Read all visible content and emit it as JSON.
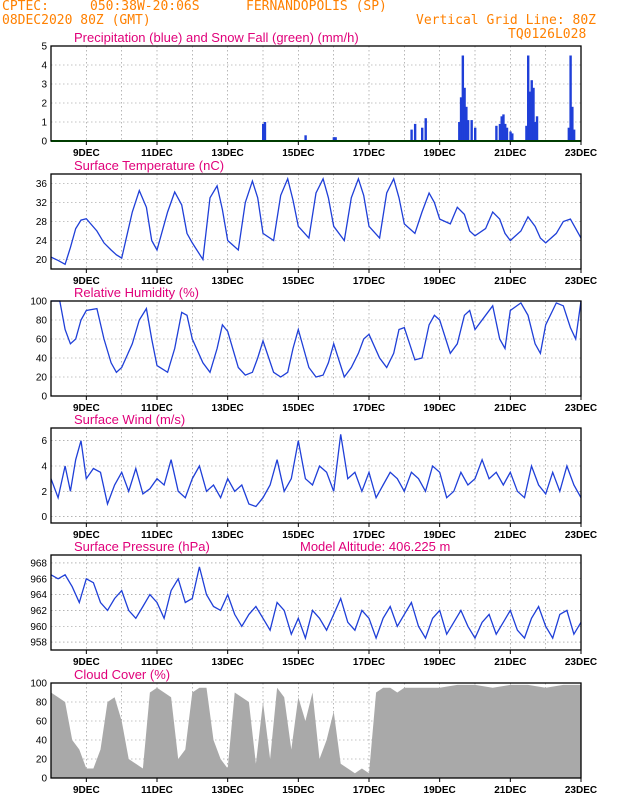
{
  "header": {
    "source": "CPTEC:",
    "coords": "050:38W-20:06S",
    "location": "FERNANDOPOLIS (SP)",
    "run": "08DEC2020 80Z (GMT)",
    "grid_info": "Vertical Grid Line: 80Z",
    "model": "TQ0126L028"
  },
  "colors": {
    "header": "#ff8000",
    "title": "#e0007a",
    "line": "#1f3fd8",
    "snow": "#00aa00",
    "cloud": "#a9a9a9"
  },
  "chart_data": [
    {
      "type": "bar",
      "title": "Precipitation (blue) and Snow Fall (green) (mm/h)",
      "ylim": [
        0,
        5
      ],
      "yticks": [
        0,
        1,
        2,
        3,
        4,
        5
      ],
      "xticks": [
        "9DEC",
        "11DEC",
        "13DEC",
        "15DEC",
        "17DEC",
        "19DEC",
        "21DEC",
        "23DEC"
      ],
      "series": [
        {
          "name": "Precipitation",
          "x": [
            14.0,
            14.05,
            15.2,
            16.0,
            16.05,
            18.2,
            18.3,
            18.5,
            18.6,
            19.55,
            19.6,
            19.65,
            19.7,
            19.75,
            19.8,
            19.9,
            20.0,
            20.6,
            20.7,
            20.75,
            20.8,
            20.85,
            20.9,
            21.0,
            21.05,
            21.45,
            21.5,
            21.55,
            21.6,
            21.65,
            21.7,
            21.75,
            22.65,
            22.7,
            22.75,
            22.8
          ],
          "values": [
            0.9,
            1.0,
            0.3,
            0.2,
            0.2,
            0.6,
            0.9,
            0.7,
            1.2,
            1.0,
            2.3,
            4.5,
            2.8,
            1.8,
            1.1,
            1.1,
            0.7,
            0.8,
            0.9,
            1.3,
            1.4,
            0.9,
            0.7,
            0.5,
            0.4,
            0.8,
            4.5,
            2.6,
            3.2,
            2.8,
            1.0,
            1.3,
            0.7,
            4.5,
            1.8,
            0.6
          ]
        },
        {
          "name": "Snow Fall",
          "x": [
            8.0,
            23.0
          ],
          "values": [
            0,
            0
          ]
        }
      ]
    },
    {
      "type": "line",
      "title": "Surface Temperature (nC)",
      "ylim": [
        18,
        38
      ],
      "yticks": [
        20,
        24,
        28,
        32,
        36
      ],
      "xticks": [
        "9DEC",
        "11DEC",
        "13DEC",
        "15DEC",
        "17DEC",
        "19DEC",
        "21DEC",
        "23DEC"
      ],
      "x": [
        8.0,
        8.2,
        8.4,
        8.55,
        8.7,
        8.85,
        9.0,
        9.3,
        9.5,
        9.7,
        9.85,
        10.0,
        10.3,
        10.5,
        10.7,
        10.85,
        11.0,
        11.3,
        11.5,
        11.7,
        11.85,
        12.0,
        12.3,
        12.5,
        12.7,
        12.85,
        13.0,
        13.3,
        13.5,
        13.7,
        13.85,
        14.0,
        14.3,
        14.5,
        14.7,
        14.85,
        15.0,
        15.3,
        15.5,
        15.7,
        15.85,
        16.0,
        16.3,
        16.5,
        16.7,
        16.85,
        17.0,
        17.3,
        17.5,
        17.7,
        17.85,
        18.0,
        18.3,
        18.5,
        18.7,
        18.85,
        19.0,
        19.3,
        19.5,
        19.7,
        19.85,
        20.0,
        20.3,
        20.5,
        20.7,
        20.85,
        21.0,
        21.3,
        21.5,
        21.7,
        21.85,
        22.0,
        22.3,
        22.5,
        22.7,
        22.85,
        23.0
      ],
      "values": [
        20.5,
        19.8,
        19.0,
        22.5,
        26.5,
        28.3,
        28.6,
        26.0,
        23.5,
        22.0,
        21.0,
        20.3,
        30.0,
        34.5,
        31.0,
        24.0,
        22.0,
        30.0,
        34.2,
        31.5,
        25.5,
        23.5,
        20.0,
        33.0,
        35.5,
        30.5,
        24.0,
        22.0,
        32.0,
        36.5,
        33.0,
        25.5,
        24.0,
        33.5,
        37.0,
        32.5,
        27.0,
        24.5,
        34.0,
        37.0,
        33.0,
        27.0,
        24.0,
        33.0,
        37.0,
        33.5,
        27.0,
        24.5,
        34.0,
        37.0,
        33.0,
        27.5,
        25.5,
        30.0,
        34.0,
        32.0,
        28.5,
        27.5,
        31.0,
        29.5,
        26.0,
        25.0,
        26.5,
        30.0,
        28.5,
        25.5,
        24.0,
        26.0,
        29.0,
        27.0,
        24.5,
        23.5,
        25.5,
        28.0,
        28.5,
        26.5,
        24.5
      ]
    },
    {
      "type": "line",
      "title": "Relative Humidity (%)",
      "ylim": [
        0,
        100
      ],
      "yticks": [
        0,
        20,
        40,
        60,
        80,
        100
      ],
      "xticks": [
        "9DEC",
        "11DEC",
        "13DEC",
        "15DEC",
        "17DEC",
        "19DEC",
        "21DEC",
        "23DEC"
      ],
      "x": [
        8.0,
        8.1,
        8.25,
        8.4,
        8.55,
        8.7,
        8.85,
        9.0,
        9.3,
        9.5,
        9.7,
        9.85,
        10.0,
        10.3,
        10.5,
        10.7,
        10.85,
        11.0,
        11.3,
        11.5,
        11.7,
        11.85,
        12.0,
        12.3,
        12.5,
        12.7,
        12.85,
        13.0,
        13.3,
        13.5,
        13.7,
        13.85,
        14.0,
        14.3,
        14.5,
        14.7,
        14.85,
        15.0,
        15.3,
        15.5,
        15.7,
        15.85,
        16.0,
        16.3,
        16.5,
        16.7,
        16.85,
        17.0,
        17.3,
        17.5,
        17.7,
        17.85,
        18.0,
        18.3,
        18.5,
        18.7,
        18.85,
        19.0,
        19.3,
        19.5,
        19.7,
        19.85,
        20.0,
        20.3,
        20.5,
        20.7,
        20.85,
        21.0,
        21.3,
        21.5,
        21.7,
        21.85,
        22.0,
        22.3,
        22.5,
        22.7,
        22.85,
        23.0
      ],
      "values": [
        100,
        100,
        100,
        70,
        55,
        60,
        80,
        90,
        92,
        60,
        35,
        25,
        30,
        55,
        80,
        92,
        60,
        32,
        25,
        50,
        88,
        85,
        60,
        35,
        25,
        50,
        75,
        68,
        30,
        22,
        25,
        40,
        58,
        25,
        20,
        25,
        50,
        70,
        30,
        20,
        22,
        35,
        55,
        20,
        30,
        45,
        60,
        65,
        40,
        30,
        45,
        70,
        72,
        38,
        40,
        75,
        85,
        80,
        45,
        55,
        85,
        90,
        70,
        85,
        95,
        60,
        50,
        90,
        98,
        85,
        55,
        45,
        75,
        98,
        95,
        72,
        60,
        100
      ]
    },
    {
      "type": "line",
      "title": "Surface Wind (m/s)",
      "ylim": [
        -0.5,
        7
      ],
      "yticks": [
        0,
        2,
        4,
        6
      ],
      "xticks": [
        "9DEC",
        "11DEC",
        "13DEC",
        "15DEC",
        "17DEC",
        "19DEC",
        "21DEC",
        "23DEC"
      ],
      "x": [
        8.0,
        8.2,
        8.4,
        8.55,
        8.7,
        8.85,
        9.0,
        9.2,
        9.4,
        9.6,
        9.8,
        10.0,
        10.2,
        10.4,
        10.6,
        10.8,
        11.0,
        11.2,
        11.4,
        11.6,
        11.8,
        12.0,
        12.2,
        12.4,
        12.6,
        12.8,
        13.0,
        13.2,
        13.4,
        13.6,
        13.8,
        14.0,
        14.2,
        14.4,
        14.6,
        14.8,
        15.0,
        15.2,
        15.4,
        15.6,
        15.8,
        16.0,
        16.2,
        16.4,
        16.6,
        16.8,
        17.0,
        17.2,
        17.4,
        17.6,
        17.8,
        18.0,
        18.2,
        18.4,
        18.6,
        18.8,
        19.0,
        19.2,
        19.4,
        19.6,
        19.8,
        20.0,
        20.2,
        20.4,
        20.6,
        20.8,
        21.0,
        21.2,
        21.4,
        21.6,
        21.8,
        22.0,
        22.2,
        22.4,
        22.6,
        22.8,
        23.0
      ],
      "values": [
        3.0,
        1.5,
        4.0,
        2.0,
        4.5,
        6.0,
        3.0,
        3.8,
        3.5,
        1.0,
        2.5,
        3.5,
        2.0,
        3.8,
        1.8,
        2.2,
        3.0,
        2.5,
        4.5,
        2.0,
        1.5,
        3.0,
        4.0,
        2.0,
        2.5,
        1.5,
        3.0,
        2.0,
        2.5,
        1.0,
        0.8,
        1.5,
        2.5,
        4.5,
        2.0,
        3.0,
        6.0,
        3.0,
        2.5,
        4.0,
        3.5,
        2.0,
        6.5,
        3.0,
        3.5,
        2.0,
        3.5,
        1.5,
        2.5,
        3.5,
        3.0,
        2.0,
        3.5,
        3.0,
        2.0,
        4.0,
        3.5,
        1.5,
        2.0,
        3.5,
        2.5,
        3.0,
        4.5,
        3.0,
        3.5,
        2.5,
        3.5,
        2.0,
        1.5,
        4.0,
        2.5,
        1.8,
        3.5,
        2.0,
        4.0,
        2.5,
        1.5
      ]
    },
    {
      "type": "line",
      "title": "Surface Pressure (hPa)",
      "ylim": [
        957,
        969
      ],
      "yticks": [
        958,
        960,
        962,
        964,
        966,
        968
      ],
      "xticks": [
        "9DEC",
        "11DEC",
        "13DEC",
        "15DEC",
        "17DEC",
        "19DEC",
        "21DEC",
        "23DEC"
      ],
      "x": [
        8.0,
        8.2,
        8.4,
        8.6,
        8.8,
        9.0,
        9.2,
        9.4,
        9.6,
        9.8,
        10.0,
        10.2,
        10.4,
        10.6,
        10.8,
        11.0,
        11.2,
        11.4,
        11.6,
        11.8,
        12.0,
        12.2,
        12.4,
        12.6,
        12.8,
        13.0,
        13.2,
        13.4,
        13.6,
        13.8,
        14.0,
        14.2,
        14.4,
        14.6,
        14.8,
        15.0,
        15.2,
        15.4,
        15.6,
        15.8,
        16.0,
        16.2,
        16.4,
        16.6,
        16.8,
        17.0,
        17.2,
        17.4,
        17.6,
        17.8,
        18.0,
        18.2,
        18.4,
        18.6,
        18.8,
        19.0,
        19.2,
        19.4,
        19.6,
        19.8,
        20.0,
        20.2,
        20.4,
        20.6,
        20.8,
        21.0,
        21.2,
        21.4,
        21.6,
        21.8,
        22.0,
        22.2,
        22.4,
        22.6,
        22.8,
        23.0
      ],
      "values": [
        966.5,
        966.0,
        966.5,
        965.0,
        963.0,
        966.0,
        965.5,
        963.0,
        962.0,
        963.5,
        964.5,
        962.0,
        961.0,
        962.5,
        964.0,
        963.0,
        961.0,
        964.5,
        966.0,
        963.0,
        963.5,
        967.5,
        964.0,
        962.5,
        962.0,
        964.0,
        961.5,
        960.0,
        961.5,
        962.5,
        961.0,
        959.5,
        963.0,
        962.0,
        959.0,
        961.0,
        958.5,
        962.0,
        961.0,
        959.5,
        961.5,
        963.5,
        960.5,
        959.5,
        962.0,
        961.0,
        958.5,
        961.0,
        962.5,
        960.0,
        961.5,
        963.0,
        960.0,
        958.5,
        961.0,
        962.0,
        959.0,
        960.5,
        962.0,
        960.0,
        958.5,
        960.5,
        961.5,
        959.0,
        960.5,
        962.0,
        959.5,
        958.5,
        961.0,
        962.5,
        960.0,
        958.5,
        961.5,
        962.0,
        959.0,
        960.5
      ]
    },
    {
      "type": "area",
      "title": "Cloud Cover (%)",
      "ylim": [
        0,
        100
      ],
      "yticks": [
        0,
        20,
        40,
        60,
        80,
        100
      ],
      "xticks": [
        "9DEC",
        "11DEC",
        "13DEC",
        "15DEC",
        "17DEC",
        "19DEC",
        "21DEC",
        "23DEC"
      ],
      "x": [
        8.0,
        8.2,
        8.4,
        8.6,
        8.8,
        9.0,
        9.2,
        9.4,
        9.6,
        9.8,
        10.0,
        10.2,
        10.4,
        10.6,
        10.8,
        11.0,
        11.2,
        11.4,
        11.6,
        11.8,
        12.0,
        12.2,
        12.4,
        12.6,
        12.8,
        13.0,
        13.2,
        13.4,
        13.6,
        13.8,
        14.0,
        14.2,
        14.4,
        14.6,
        14.8,
        15.0,
        15.2,
        15.4,
        15.6,
        15.8,
        16.0,
        16.2,
        16.4,
        16.6,
        16.8,
        17.0,
        17.2,
        17.4,
        17.6,
        17.8,
        18.0,
        18.5,
        19.0,
        19.5,
        20.0,
        20.5,
        21.0,
        21.5,
        22.0,
        22.5,
        23.0
      ],
      "values": [
        90,
        85,
        80,
        40,
        30,
        10,
        10,
        30,
        80,
        85,
        60,
        20,
        15,
        10,
        90,
        95,
        90,
        85,
        20,
        30,
        90,
        95,
        95,
        40,
        20,
        10,
        90,
        85,
        80,
        15,
        80,
        20,
        95,
        85,
        30,
        85,
        60,
        90,
        20,
        40,
        70,
        15,
        10,
        5,
        10,
        5,
        90,
        95,
        95,
        90,
        95,
        95,
        95,
        98,
        98,
        95,
        98,
        98,
        95,
        98,
        98
      ]
    }
  ],
  "extra": {
    "model_altitude": "Model Altitude: 406.225 m"
  }
}
